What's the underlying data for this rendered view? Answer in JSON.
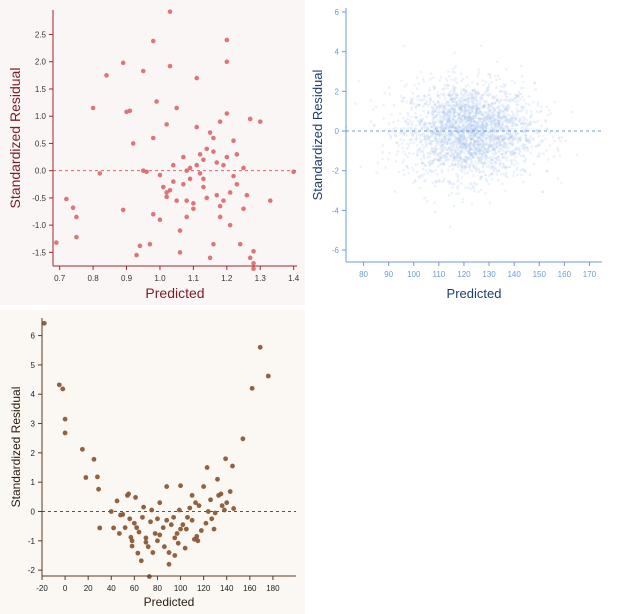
{
  "chart_data": [
    {
      "type": "scatter",
      "xlabel": "Predicted",
      "ylabel": "Standardized Residual",
      "xlim": [
        0.68,
        1.41
      ],
      "ylim": [
        -1.75,
        2.95
      ],
      "xticks": [
        "0.7",
        "0.8",
        "0.9",
        "1.0",
        "1.1",
        "1.2",
        "1.3",
        "1.4"
      ],
      "yticks": [
        "-1.5",
        "-1.0",
        "-0.5",
        "0.0",
        "0.5",
        "1.0",
        "1.5",
        "2.0",
        "2.5"
      ],
      "reference_line": 0,
      "grid": false,
      "colors": {
        "points": "#d9676b",
        "axis": "#a0262a",
        "label": "#7a1d24",
        "background": "#fbf6f6"
      },
      "points": [
        [
          0.69,
          -1.32
        ],
        [
          0.72,
          -0.52
        ],
        [
          0.74,
          -0.68
        ],
        [
          0.75,
          -0.85
        ],
        [
          0.75,
          -1.22
        ],
        [
          0.8,
          1.15
        ],
        [
          0.82,
          -0.05
        ],
        [
          0.84,
          1.75
        ],
        [
          0.89,
          -0.72
        ],
        [
          0.89,
          1.98
        ],
        [
          0.9,
          1.08
        ],
        [
          0.91,
          1.1
        ],
        [
          0.92,
          0.5
        ],
        [
          0.93,
          -1.55
        ],
        [
          0.94,
          -1.38
        ],
        [
          0.95,
          1.83
        ],
        [
          0.95,
          0.0
        ],
        [
          0.96,
          -0.02
        ],
        [
          0.97,
          -1.35
        ],
        [
          0.98,
          0.6
        ],
        [
          0.98,
          2.38
        ],
        [
          0.99,
          1.27
        ],
        [
          0.98,
          -0.8
        ],
        [
          1.0,
          -0.08
        ],
        [
          1.0,
          -0.9
        ],
        [
          1.01,
          -0.3
        ],
        [
          1.02,
          -0.48
        ],
        [
          1.02,
          -0.4
        ],
        [
          1.03,
          -0.36
        ],
        [
          1.02,
          0.85
        ],
        [
          1.03,
          1.92
        ],
        [
          1.03,
          2.92
        ],
        [
          1.04,
          -0.2
        ],
        [
          1.04,
          0.1
        ],
        [
          1.05,
          1.15
        ],
        [
          1.05,
          -0.55
        ],
        [
          1.06,
          -1.5
        ],
        [
          1.06,
          -1.1
        ],
        [
          1.07,
          -0.25
        ],
        [
          1.07,
          0.25
        ],
        [
          1.08,
          -0.55
        ],
        [
          1.08,
          0.0
        ],
        [
          1.08,
          -0.85
        ],
        [
          1.09,
          -0.15
        ],
        [
          1.09,
          0.05
        ],
        [
          1.1,
          -0.6
        ],
        [
          1.1,
          -0.7
        ],
        [
          1.11,
          0.8
        ],
        [
          1.11,
          0.1
        ],
        [
          1.11,
          1.7
        ],
        [
          1.12,
          0.3
        ],
        [
          1.12,
          -0.05
        ],
        [
          1.13,
          0.2
        ],
        [
          1.13,
          -0.15
        ],
        [
          1.13,
          -0.3
        ],
        [
          1.14,
          0.4
        ],
        [
          1.14,
          -0.5
        ],
        [
          1.15,
          0.7
        ],
        [
          1.15,
          -1.6
        ],
        [
          1.16,
          0.6
        ],
        [
          1.16,
          0.35
        ],
        [
          1.16,
          -1.35
        ],
        [
          1.17,
          -0.45
        ],
        [
          1.17,
          0.15
        ],
        [
          1.18,
          0.9
        ],
        [
          1.18,
          -0.65
        ],
        [
          1.18,
          -0.85
        ],
        [
          1.19,
          -0.55
        ],
        [
          1.19,
          0.1
        ],
        [
          1.2,
          2.4
        ],
        [
          1.2,
          2.0
        ],
        [
          1.2,
          1.05
        ],
        [
          1.2,
          0.25
        ],
        [
          1.21,
          -0.4
        ],
        [
          1.21,
          -1.0
        ],
        [
          1.22,
          0.55
        ],
        [
          1.22,
          -0.1
        ],
        [
          1.23,
          0.3
        ],
        [
          1.23,
          -0.25
        ],
        [
          1.24,
          -1.35
        ],
        [
          1.25,
          0.05
        ],
        [
          1.25,
          -0.7
        ],
        [
          1.26,
          -0.45
        ],
        [
          1.27,
          0.95
        ],
        [
          1.27,
          -1.6
        ],
        [
          1.28,
          -1.7
        ],
        [
          1.28,
          -1.8
        ],
        [
          1.28,
          -1.48
        ],
        [
          1.3,
          0.9
        ],
        [
          1.33,
          -0.55
        ],
        [
          1.4,
          -0.02
        ]
      ]
    },
    {
      "type": "scatter",
      "xlabel": "Predicted",
      "ylabel": "Standardized Residual",
      "xlim": [
        73,
        175
      ],
      "ylim": [
        -6.6,
        6.2
      ],
      "xticks": [
        "80",
        "90",
        "100",
        "110",
        "120",
        "130",
        "140",
        "150",
        "160",
        "170"
      ],
      "yticks": [
        "-6",
        "-4",
        "-2",
        "0",
        "2",
        "4",
        "6"
      ],
      "reference_line": 0,
      "grid": false,
      "density": {
        "x_center": 122,
        "x_spread": 13,
        "y_spread": 1.2,
        "count": 2600
      },
      "colors": {
        "points": "#a9c6ec",
        "axis": "#6b9be0",
        "label": "#1d3f6e",
        "background": "#ffffff"
      }
    },
    {
      "type": "scatter",
      "xlabel": "Predicted",
      "ylabel": "Standardized Residual",
      "xlim": [
        -20,
        200
      ],
      "ylim": [
        -2.2,
        6.6
      ],
      "xticks": [
        "-20",
        "0",
        "20",
        "40",
        "60",
        "80",
        "100",
        "120",
        "140",
        "160",
        "180"
      ],
      "yticks": [
        "-2",
        "-1",
        "0",
        "1",
        "2",
        "3",
        "4",
        "5",
        "6"
      ],
      "reference_line": 0,
      "grid": false,
      "colors": {
        "points": "#8b5a36",
        "axis": "#5a3a22",
        "label": "#2a1a0e",
        "background": "#fbf8f3"
      },
      "points": [
        [
          -18,
          6.42
        ],
        [
          -5,
          4.32
        ],
        [
          -2,
          4.18
        ],
        [
          0,
          3.15
        ],
        [
          0,
          2.68
        ],
        [
          15,
          2.12
        ],
        [
          18,
          1.16
        ],
        [
          25,
          1.78
        ],
        [
          28,
          1.18
        ],
        [
          29,
          0.76
        ],
        [
          30,
          -0.56
        ],
        [
          40,
          0.0
        ],
        [
          42,
          -0.56
        ],
        [
          45,
          0.36
        ],
        [
          47,
          -0.75
        ],
        [
          48,
          -0.12
        ],
        [
          50,
          -0.1
        ],
        [
          52,
          -0.55
        ],
        [
          54,
          0.55
        ],
        [
          55,
          0.6
        ],
        [
          56,
          -0.25
        ],
        [
          57,
          -0.88
        ],
        [
          58,
          -1.0
        ],
        [
          58,
          -1.18
        ],
        [
          60,
          -0.4
        ],
        [
          61,
          0.48
        ],
        [
          62,
          -0.55
        ],
        [
          63,
          -1.42
        ],
        [
          64,
          -0.7
        ],
        [
          66,
          -1.68
        ],
        [
          67,
          -0.2
        ],
        [
          68,
          0.15
        ],
        [
          70,
          -0.9
        ],
        [
          70,
          -1.05
        ],
        [
          72,
          -1.2
        ],
        [
          73,
          -2.22
        ],
        [
          74,
          -0.35
        ],
        [
          75,
          0.05
        ],
        [
          76,
          -1.4
        ],
        [
          78,
          -0.75
        ],
        [
          80,
          -0.25
        ],
        [
          80,
          -1.0
        ],
        [
          82,
          -0.8
        ],
        [
          82,
          0.3
        ],
        [
          85,
          -0.55
        ],
        [
          86,
          -1.2
        ],
        [
          88,
          -0.3
        ],
        [
          88,
          0.85
        ],
        [
          90,
          -1.8
        ],
        [
          90,
          -1.4
        ],
        [
          92,
          -0.45
        ],
        [
          94,
          -0.2
        ],
        [
          95,
          -0.9
        ],
        [
          95,
          -1.5
        ],
        [
          97,
          -0.75
        ],
        [
          98,
          -1.08
        ],
        [
          99,
          0.05
        ],
        [
          100,
          0.88
        ],
        [
          100,
          -0.6
        ],
        [
          102,
          -0.45
        ],
        [
          104,
          -1.25
        ],
        [
          105,
          -0.6
        ],
        [
          106,
          -0.2
        ],
        [
          108,
          0.12
        ],
        [
          110,
          0.55
        ],
        [
          110,
          -0.3
        ],
        [
          112,
          -0.95
        ],
        [
          113,
          0.3
        ],
        [
          114,
          -0.85
        ],
        [
          115,
          -1.0
        ],
        [
          116,
          0.2
        ],
        [
          118,
          -0.65
        ],
        [
          120,
          0.85
        ],
        [
          122,
          -0.4
        ],
        [
          123,
          1.5
        ],
        [
          124,
          0.0
        ],
        [
          126,
          0.4
        ],
        [
          127,
          -0.25
        ],
        [
          129,
          -0.6
        ],
        [
          130,
          -0.05
        ],
        [
          132,
          1.1
        ],
        [
          133,
          0.55
        ],
        [
          135,
          0.6
        ],
        [
          136,
          0.2
        ],
        [
          138,
          0.05
        ],
        [
          139,
          1.8
        ],
        [
          140,
          0.3
        ],
        [
          143,
          0.68
        ],
        [
          145,
          1.55
        ],
        [
          146,
          0.1
        ],
        [
          154,
          2.48
        ],
        [
          162,
          4.2
        ],
        [
          169,
          5.6
        ],
        [
          176,
          4.62
        ]
      ]
    }
  ]
}
